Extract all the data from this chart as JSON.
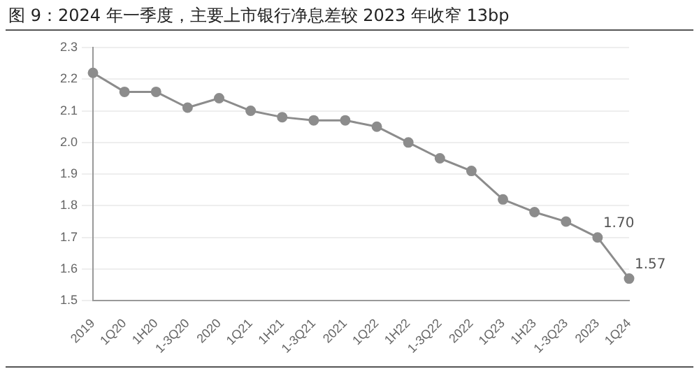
{
  "chart_data": {
    "type": "line",
    "title": "图 9：2024 年一季度，主要上市银行净息差较 2023 年收窄 13bp",
    "categories": [
      "2019",
      "1Q20",
      "1H20",
      "1-3Q20",
      "2020",
      "1Q21",
      "1H21",
      "1-3Q21",
      "2021",
      "1Q22",
      "1H22",
      "1-3Q22",
      "2022",
      "1Q23",
      "1H23",
      "1-3Q23",
      "2023",
      "1Q24"
    ],
    "series": [
      {
        "color": "#8c8c8c",
        "values": [
          2.22,
          2.16,
          2.16,
          2.11,
          2.14,
          2.1,
          2.08,
          2.07,
          2.07,
          2.05,
          2.0,
          1.95,
          1.91,
          1.82,
          1.78,
          1.75,
          1.7,
          1.57
        ],
        "value_labels": [
          null,
          null,
          null,
          null,
          null,
          null,
          null,
          null,
          null,
          null,
          null,
          null,
          null,
          null,
          null,
          null,
          "1.70",
          "1.57"
        ]
      }
    ],
    "ylim": [
      1.5,
      2.3
    ],
    "yticks": [
      1.5,
      1.6,
      1.7,
      1.8,
      1.9,
      {
        "value": 2,
        "label": "2.0"
      },
      2.1,
      2.2,
      2.3
    ],
    "grid": "y",
    "legend": false,
    "marker": "circle",
    "line_style": "solid"
  }
}
